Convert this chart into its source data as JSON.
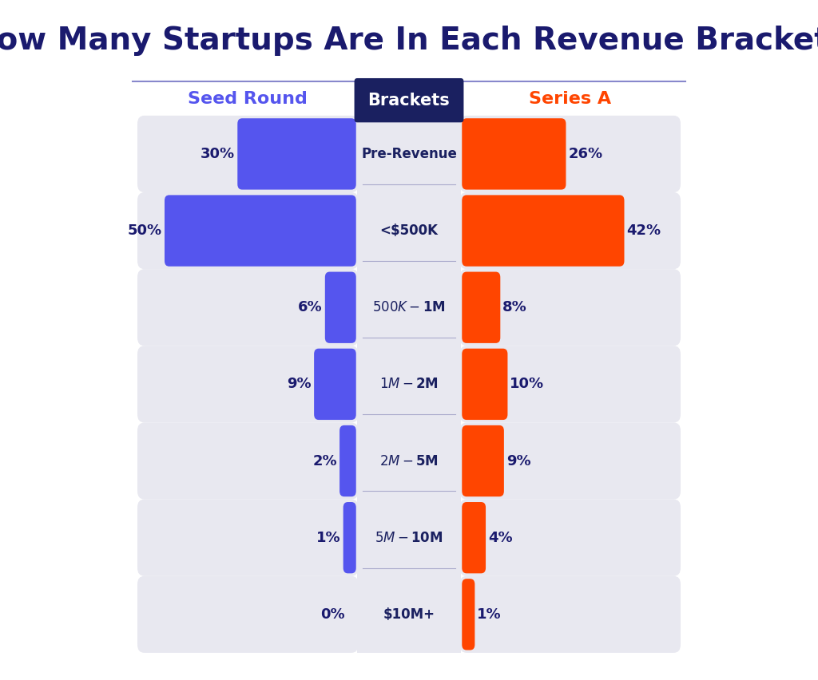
{
  "title": "How Many Startups Are In Each Revenue Bracket?",
  "title_color": "#1a1a6e",
  "title_fontsize": 28,
  "brackets": [
    "Pre-Revenue",
    "<$500K",
    "$500K-$1M",
    "$1M-$2M",
    "$2M-$5M",
    "$5M-$10M",
    "$10M+"
  ],
  "seed_values": [
    30,
    50,
    6,
    9,
    2,
    1,
    0
  ],
  "series_a_values": [
    26,
    42,
    8,
    10,
    9,
    4,
    1
  ],
  "seed_color": "#5555ee",
  "series_a_color": "#ff4500",
  "seed_label": "Seed Round",
  "series_a_label": "Series A",
  "brackets_label": "Brackets",
  "max_value": 50,
  "bar_bg_color": "#e8e8f0",
  "bracket_bg_color": "#e8e8f0",
  "bracket_header_bg": "#1a2060",
  "bracket_header_text": "#ffffff",
  "divider_color": "#aaaacc",
  "background_color": "#ffffff"
}
